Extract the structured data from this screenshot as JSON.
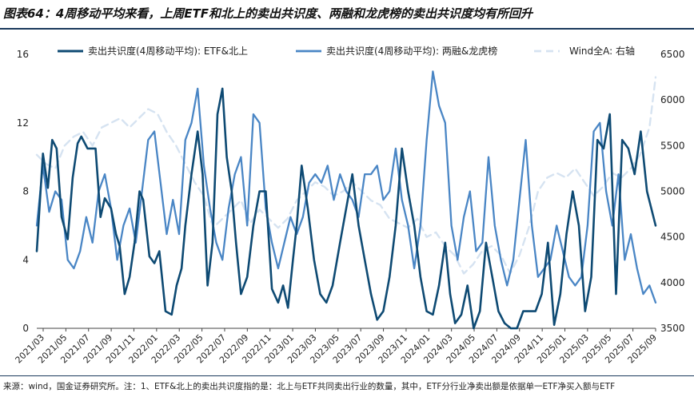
{
  "title": "图表64：4周移动平均来看，上周ETF和北上的卖出共识度、两融和龙虎榜的卖出共识度均有所回升",
  "source": "来源：wind，国金证券研究所。注：1、ETF&北上的卖出共识度指的是：北上与ETF共同卖出行业的数量，其中，ETF分行业净卖出额是依据单一ETF净买入额与ETF",
  "colors": {
    "etf": "#0e4a73",
    "margin": "#4a86c5",
    "wind": "#d6e3f1",
    "rule": "#1a3a5c"
  },
  "chart_data": {
    "type": "line",
    "title": "4周移动平均来看，上周ETF和北上的卖出共识度、两融和龙虎榜的卖出共识度均有所回升",
    "legend_position": "top",
    "y_left": {
      "min": 0,
      "max": 16,
      "ticks": [
        "0",
        "4",
        "8",
        "12",
        "16"
      ]
    },
    "y_right": {
      "min": 3500,
      "max": 6500,
      "ticks": [
        "3500",
        "4000",
        "4500",
        "5000",
        "5500",
        "6000",
        "6500"
      ],
      "label": "右轴"
    },
    "x_ticks": [
      "2021/03",
      "2021/05",
      "2021/07",
      "2021/09",
      "2021/11",
      "2022/01",
      "2022/03",
      "2022/05",
      "2022/07",
      "2022/09",
      "2022/11",
      "2023/01",
      "2023/03",
      "2023/05",
      "2023/07",
      "2023/09",
      "2023/11",
      "2024/01",
      "2024/03",
      "2024/05",
      "2024/07",
      "2024/09",
      "2024/11",
      "2025/01",
      "2025/03",
      "2025/05",
      "2025/07",
      "2025/09"
    ],
    "x_range": [
      0,
      1
    ],
    "series": [
      {
        "name": "卖出共识度(4周移动平均): ETF&北上",
        "axis": "left",
        "key": "etf",
        "x": [
          0.0,
          0.01,
          0.018,
          0.025,
          0.032,
          0.04,
          0.05,
          0.058,
          0.066,
          0.072,
          0.082,
          0.095,
          0.103,
          0.11,
          0.12,
          0.128,
          0.134,
          0.142,
          0.15,
          0.158,
          0.166,
          0.172,
          0.182,
          0.19,
          0.198,
          0.208,
          0.218,
          0.226,
          0.234,
          0.24,
          0.25,
          0.26,
          0.268,
          0.276,
          0.284,
          0.292,
          0.3,
          0.307,
          0.315,
          0.322,
          0.33,
          0.34,
          0.35,
          0.36,
          0.37,
          0.38,
          0.39,
          0.398,
          0.406,
          0.414,
          0.42,
          0.428,
          0.438,
          0.448,
          0.458,
          0.468,
          0.478,
          0.49,
          0.5,
          0.51,
          0.52,
          0.53,
          0.54,
          0.55,
          0.56,
          0.57,
          0.58,
          0.59,
          0.6,
          0.61,
          0.62,
          0.63,
          0.64,
          0.65,
          0.66,
          0.668,
          0.676,
          0.686,
          0.696,
          0.706,
          0.716,
          0.726,
          0.736,
          0.746,
          0.756,
          0.766,
          0.776,
          0.786,
          0.796,
          0.806,
          0.816,
          0.826,
          0.836,
          0.846,
          0.856,
          0.866,
          0.876,
          0.886,
          0.896,
          0.906,
          0.916,
          0.926,
          0.936,
          0.946,
          0.956,
          0.966,
          0.976,
          0.986,
          1.0
        ],
        "y": [
          4.5,
          10.2,
          8.2,
          11.0,
          10.5,
          6.5,
          5.2,
          8.8,
          10.8,
          11.2,
          10.5,
          10.5,
          6.5,
          7.6,
          7.0,
          5.5,
          4.8,
          2.0,
          3.0,
          5.0,
          8.0,
          7.5,
          4.2,
          3.8,
          4.5,
          1.0,
          0.8,
          2.5,
          3.5,
          6.0,
          9.0,
          11.5,
          9.0,
          2.5,
          5.0,
          12.5,
          14.0,
          10.0,
          8.0,
          5.0,
          2.0,
          3.0,
          6.0,
          8.0,
          8.0,
          2.3,
          1.5,
          2.5,
          1.2,
          4.0,
          6.0,
          9.5,
          7.0,
          4.0,
          2.0,
          1.5,
          2.5,
          5.0,
          7.0,
          9.0,
          6.0,
          4.0,
          2.0,
          0.5,
          1.0,
          3.0,
          6.0,
          10.5,
          8.0,
          6.0,
          3.0,
          1.0,
          0.8,
          2.5,
          5.0,
          2.0,
          0.3,
          0.8,
          2.5,
          0.0,
          1.0,
          5.0,
          3.0,
          1.0,
          0.3,
          0.0,
          0.0,
          1.0,
          1.0,
          1.0,
          2.0,
          5.0,
          0.2,
          2.0,
          5.5,
          8.0,
          6.0,
          1.0,
          3.0,
          11.0,
          10.5,
          12.5,
          2.0,
          11.0,
          10.5,
          9.0,
          11.5,
          8.0,
          6.0
        ]
      },
      {
        "name": "卖出共识度(4周移动平均): 两融&龙虎榜",
        "axis": "left",
        "key": "margin",
        "x": [
          0.0,
          0.01,
          0.02,
          0.03,
          0.04,
          0.05,
          0.06,
          0.07,
          0.08,
          0.09,
          0.1,
          0.11,
          0.12,
          0.13,
          0.14,
          0.15,
          0.16,
          0.17,
          0.18,
          0.19,
          0.2,
          0.21,
          0.22,
          0.23,
          0.24,
          0.25,
          0.26,
          0.27,
          0.28,
          0.29,
          0.3,
          0.31,
          0.32,
          0.33,
          0.34,
          0.35,
          0.36,
          0.37,
          0.38,
          0.39,
          0.4,
          0.41,
          0.42,
          0.43,
          0.44,
          0.45,
          0.46,
          0.47,
          0.48,
          0.49,
          0.5,
          0.51,
          0.52,
          0.53,
          0.54,
          0.55,
          0.56,
          0.57,
          0.58,
          0.59,
          0.6,
          0.61,
          0.62,
          0.63,
          0.64,
          0.65,
          0.66,
          0.67,
          0.68,
          0.69,
          0.7,
          0.71,
          0.72,
          0.73,
          0.74,
          0.75,
          0.76,
          0.77,
          0.78,
          0.79,
          0.8,
          0.81,
          0.82,
          0.83,
          0.84,
          0.85,
          0.86,
          0.87,
          0.88,
          0.89,
          0.9,
          0.91,
          0.92,
          0.93,
          0.94,
          0.95,
          0.96,
          0.97,
          0.98,
          0.99,
          1.0
        ],
        "y": [
          6.0,
          9.5,
          6.8,
          8.0,
          7.5,
          4.0,
          3.5,
          4.5,
          6.5,
          5.0,
          8.0,
          9.0,
          7.0,
          4.0,
          6.0,
          7.0,
          5.0,
          8.0,
          11.0,
          11.5,
          8.5,
          5.5,
          7.5,
          5.5,
          11.0,
          12.0,
          14.0,
          9.5,
          7.0,
          5.0,
          4.0,
          7.0,
          9.0,
          10.0,
          6.0,
          12.5,
          12.0,
          7.0,
          5.0,
          3.5,
          5.0,
          6.5,
          5.5,
          6.5,
          8.5,
          9.0,
          8.5,
          9.5,
          7.5,
          9.0,
          8.0,
          7.5,
          6.5,
          9.0,
          9.0,
          9.5,
          7.5,
          8.0,
          10.5,
          7.5,
          6.0,
          3.5,
          6.0,
          11.0,
          15.0,
          13.0,
          12.0,
          6.0,
          4.0,
          6.5,
          8.0,
          4.5,
          5.0,
          10.0,
          6.0,
          4.0,
          2.5,
          4.0,
          7.5,
          11.0,
          6.0,
          3.0,
          3.5,
          4.0,
          6.0,
          4.5,
          3.0,
          2.5,
          3.0,
          6.0,
          11.5,
          12.0,
          8.0,
          6.0,
          9.0,
          4.0,
          5.5,
          3.5,
          2.0,
          2.5,
          1.5
        ]
      },
      {
        "name": "Wind全A: 右轴",
        "axis": "right",
        "key": "wind",
        "x": [
          0.0,
          0.015,
          0.03,
          0.045,
          0.06,
          0.075,
          0.09,
          0.105,
          0.12,
          0.135,
          0.15,
          0.165,
          0.18,
          0.195,
          0.21,
          0.225,
          0.24,
          0.255,
          0.27,
          0.285,
          0.3,
          0.315,
          0.33,
          0.345,
          0.36,
          0.375,
          0.39,
          0.405,
          0.42,
          0.435,
          0.45,
          0.465,
          0.48,
          0.495,
          0.51,
          0.525,
          0.54,
          0.555,
          0.57,
          0.585,
          0.6,
          0.615,
          0.63,
          0.645,
          0.66,
          0.675,
          0.69,
          0.705,
          0.72,
          0.735,
          0.75,
          0.765,
          0.78,
          0.795,
          0.81,
          0.825,
          0.84,
          0.855,
          0.87,
          0.885,
          0.9,
          0.915,
          0.93,
          0.945,
          0.96,
          0.975,
          0.99,
          1.0
        ],
        "y": [
          5400,
          5300,
          5250,
          5500,
          5600,
          5650,
          5500,
          5700,
          5750,
          5800,
          5700,
          5800,
          5900,
          5850,
          5650,
          5500,
          5300,
          5100,
          4950,
          4600,
          4700,
          4800,
          4900,
          4650,
          4800,
          4700,
          4600,
          4700,
          4900,
          5000,
          5100,
          5050,
          4950,
          5000,
          5100,
          5000,
          4900,
          4850,
          4700,
          4650,
          4600,
          4700,
          4500,
          4550,
          4400,
          4300,
          4100,
          4200,
          4350,
          4400,
          4300,
          4100,
          4300,
          4600,
          5000,
          5150,
          5200,
          5150,
          5250,
          5100,
          4950,
          5050,
          5200,
          5150,
          5250,
          5400,
          5700,
          6250
        ]
      }
    ]
  }
}
